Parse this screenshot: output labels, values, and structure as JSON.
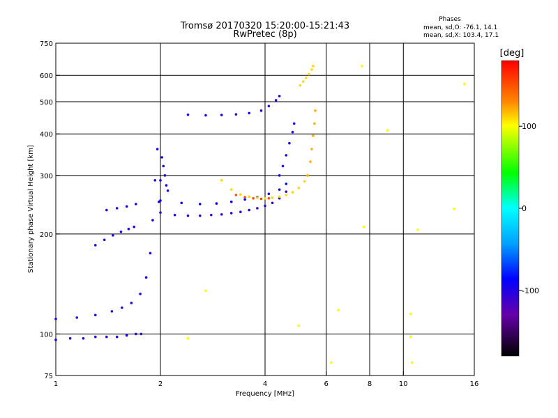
{
  "chart_data": {
    "type": "scatter",
    "title": "Tromsø 20170320 15:20:00-15:21:43",
    "subtitle": "RwPretec (8p)",
    "xlabel": "Frequency [MHz]",
    "ylabel": "Stationary phase Virtual Height [km]",
    "x_scale": "log",
    "y_scale": "log",
    "xlim": [
      1,
      16
    ],
    "ylim": [
      75,
      750
    ],
    "x_ticks": [
      1,
      2,
      4,
      6,
      8,
      10,
      16
    ],
    "x_tick_labels": [
      "1",
      "2",
      "4",
      "6",
      "8",
      "10",
      "16"
    ],
    "x_grid_lines": [
      2,
      4,
      6,
      8,
      10
    ],
    "y_ticks": [
      75,
      100,
      200,
      300,
      400,
      500,
      600,
      750
    ],
    "y_tick_labels": [
      "75",
      "100",
      "200",
      "300",
      "400",
      "500",
      "600",
      "750"
    ],
    "y_grid_lines": [
      100,
      200,
      300,
      400,
      500,
      600
    ],
    "grid": true,
    "phases_legend": {
      "title": "Phases",
      "line_o": "mean, sd,O: -76.1, 14.1",
      "line_x": "mean, sd,X: 103.4, 17.1"
    },
    "colorbar": {
      "label": "[deg]",
      "range": [
        -180,
        180
      ],
      "ticks": [
        100,
        0,
        -100
      ],
      "tick_labels": [
        "100",
        "0",
        "-100"
      ],
      "colors": [
        "#ff0000",
        "#ff8800",
        "#ffff00",
        "#00ff00",
        "#00ffff",
        "#0000ff",
        "#7700aa",
        "#000000"
      ]
    },
    "series": [
      {
        "trace": "low-branch-near-100km",
        "phase": -100,
        "x": [
          1.0,
          1.1,
          1.2,
          1.3,
          1.4,
          1.5,
          1.6,
          1.7,
          1.76
        ],
        "y": [
          96,
          97,
          97,
          98,
          98,
          98,
          99,
          100,
          100
        ]
      },
      {
        "trace": "rise-to-critical-1.9",
        "phase": -100,
        "x": [
          1.0,
          1.15,
          1.3,
          1.45,
          1.55,
          1.65,
          1.75,
          1.82,
          1.87,
          1.9,
          1.93,
          1.96
        ],
        "y": [
          111,
          112,
          114,
          117,
          120,
          124,
          132,
          148,
          175,
          220,
          290,
          360
        ]
      },
      {
        "trace": "cusp-spike-2.0",
        "phase": -100,
        "x": [
          1.98,
          2.0,
          2.02,
          2.04,
          2.06,
          2.08,
          2.1
        ],
        "y": [
          250,
          290,
          340,
          320,
          300,
          280,
          270
        ]
      },
      {
        "trace": "branch-200km",
        "phase": -100,
        "x": [
          1.3,
          1.38,
          1.46,
          1.54,
          1.62,
          1.68
        ],
        "y": [
          185,
          192,
          198,
          203,
          207,
          210
        ]
      },
      {
        "trace": "branch-245km",
        "phase": -100,
        "x": [
          1.4,
          1.5,
          1.6,
          1.7
        ],
        "y": [
          236,
          239,
          242,
          246
        ]
      },
      {
        "trace": "F-layer-o-mode",
        "phase": -110,
        "x": [
          2.0,
          2.2,
          2.4,
          2.6,
          2.8,
          3.0,
          3.2,
          3.4,
          3.6,
          3.8,
          4.0,
          4.2,
          4.4,
          4.6
        ],
        "y": [
          232,
          228,
          227,
          227,
          228,
          229,
          231,
          233,
          236,
          239,
          243,
          248,
          256,
          268
        ]
      },
      {
        "trace": "F-layer-o-upper",
        "phase": -90,
        "x": [
          2.0,
          2.3,
          2.6,
          2.9,
          3.2,
          3.5,
          3.8,
          4.1,
          4.4,
          4.6
        ],
        "y": [
          252,
          248,
          246,
          247,
          250,
          254,
          258,
          264,
          272,
          283
        ]
      },
      {
        "trace": "o-mode-critical",
        "phase": -100,
        "x": [
          4.4,
          4.5,
          4.6,
          4.7,
          4.8,
          4.85
        ],
        "y": [
          300,
          320,
          345,
          375,
          405,
          430
        ]
      },
      {
        "trace": "upper-o-trace",
        "phase": -100,
        "x": [
          2.4,
          2.7,
          3.0,
          3.3,
          3.6,
          3.9,
          4.1,
          4.3,
          4.4
        ],
        "y": [
          457,
          455,
          456,
          458,
          462,
          470,
          485,
          505,
          520
        ]
      },
      {
        "trace": "x-mode-trace",
        "phase": 110,
        "x": [
          3.0,
          3.2,
          3.4,
          3.6,
          3.8,
          4.0,
          4.2,
          4.4,
          4.6,
          4.8,
          5.0,
          5.2,
          5.3
        ],
        "y": [
          290,
          272,
          263,
          259,
          257,
          256,
          257,
          259,
          262,
          267,
          275,
          288,
          300
        ]
      },
      {
        "trace": "x-mode-critical",
        "phase": 120,
        "x": [
          5.3,
          5.4,
          5.45,
          5.5,
          5.55,
          5.58
        ],
        "y": [
          300,
          330,
          360,
          395,
          430,
          470
        ]
      },
      {
        "trace": "x-mode-upper",
        "phase": 110,
        "x": [
          5.05,
          5.15,
          5.25,
          5.35,
          5.45,
          5.5
        ],
        "y": [
          560,
          575,
          590,
          605,
          625,
          640
        ]
      },
      {
        "trace": "x-mode-orange-band",
        "phase": 150,
        "x": [
          3.3,
          3.5,
          3.7,
          3.9,
          4.1
        ],
        "y": [
          262,
          258,
          256,
          255,
          256
        ]
      },
      {
        "trace": "scattered-points",
        "phase": 100,
        "x": [
          2.4,
          2.7,
          5.0,
          6.2,
          6.5,
          7.6,
          7.7,
          9.0,
          10.5,
          10.5,
          10.6,
          11.0,
          14.0,
          15.0
        ],
        "y": [
          97,
          135,
          106,
          82,
          118,
          640,
          210,
          410,
          115,
          98,
          82,
          206,
          238,
          565
        ]
      }
    ]
  }
}
